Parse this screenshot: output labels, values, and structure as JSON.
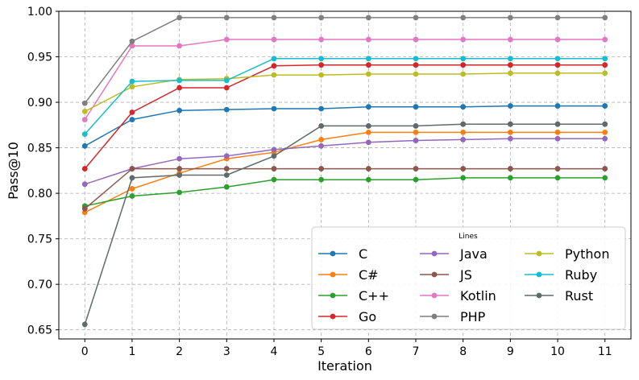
{
  "chart_data": {
    "type": "line",
    "title": "",
    "xlabel": "Iteration",
    "ylabel": "Pass@10",
    "x": [
      0,
      1,
      2,
      3,
      4,
      5,
      6,
      7,
      8,
      9,
      10,
      11
    ],
    "xlim": [
      -0.55,
      11.55
    ],
    "ylim": [
      0.64,
      1.0
    ],
    "yticks": [
      0.65,
      0.7,
      0.75,
      0.8,
      0.85,
      0.9,
      0.95,
      1.0
    ],
    "ytick_labels": [
      "0.65",
      "0.70",
      "0.75",
      "0.80",
      "0.85",
      "0.90",
      "0.95",
      "1.00"
    ],
    "grid": true,
    "legend": {
      "title": "Lines",
      "placement": "bottom-right",
      "columns": 3
    },
    "series": [
      {
        "name": "C",
        "color": "#1f77b4",
        "values": [
          0.852,
          0.881,
          0.891,
          0.892,
          0.893,
          0.893,
          0.895,
          0.895,
          0.895,
          0.896,
          0.896,
          0.896
        ]
      },
      {
        "name": "C#",
        "color": "#ff7f0e",
        "values": [
          0.779,
          0.805,
          0.822,
          0.838,
          0.845,
          0.859,
          0.867,
          0.867,
          0.867,
          0.867,
          0.867,
          0.867
        ]
      },
      {
        "name": "C++",
        "color": "#2ca02c",
        "values": [
          0.786,
          0.797,
          0.801,
          0.807,
          0.815,
          0.815,
          0.815,
          0.815,
          0.817,
          0.817,
          0.817,
          0.817
        ]
      },
      {
        "name": "Go",
        "color": "#d62728",
        "values": [
          0.827,
          0.889,
          0.916,
          0.916,
          0.94,
          0.941,
          0.941,
          0.941,
          0.941,
          0.941,
          0.941,
          0.941
        ]
      },
      {
        "name": "Java",
        "color": "#9467bd",
        "values": [
          0.81,
          0.827,
          0.838,
          0.841,
          0.848,
          0.852,
          0.856,
          0.858,
          0.859,
          0.86,
          0.86,
          0.86
        ]
      },
      {
        "name": "JS",
        "color": "#8c564b",
        "values": [
          0.783,
          0.827,
          0.827,
          0.827,
          0.827,
          0.827,
          0.827,
          0.827,
          0.827,
          0.827,
          0.827,
          0.827
        ]
      },
      {
        "name": "Kotlin",
        "color": "#e377c2",
        "values": [
          0.881,
          0.962,
          0.962,
          0.969,
          0.969,
          0.969,
          0.969,
          0.969,
          0.969,
          0.969,
          0.969,
          0.969
        ]
      },
      {
        "name": "PHP",
        "color": "#7f7f7f",
        "values": [
          0.899,
          0.967,
          0.993,
          0.993,
          0.993,
          0.993,
          0.993,
          0.993,
          0.993,
          0.993,
          0.993,
          0.993
        ]
      },
      {
        "name": "Python",
        "color": "#bcbd22",
        "values": [
          0.89,
          0.917,
          0.925,
          0.926,
          0.93,
          0.93,
          0.931,
          0.931,
          0.931,
          0.932,
          0.932,
          0.932
        ]
      },
      {
        "name": "Ruby",
        "color": "#17becf",
        "values": [
          0.865,
          0.923,
          0.924,
          0.924,
          0.948,
          0.948,
          0.948,
          0.948,
          0.948,
          0.948,
          0.948,
          0.948
        ]
      },
      {
        "name": "Rust",
        "color": "#5f6b6b",
        "values": [
          0.656,
          0.817,
          0.82,
          0.82,
          0.841,
          0.874,
          0.874,
          0.874,
          0.876,
          0.876,
          0.876,
          0.876
        ]
      }
    ]
  }
}
